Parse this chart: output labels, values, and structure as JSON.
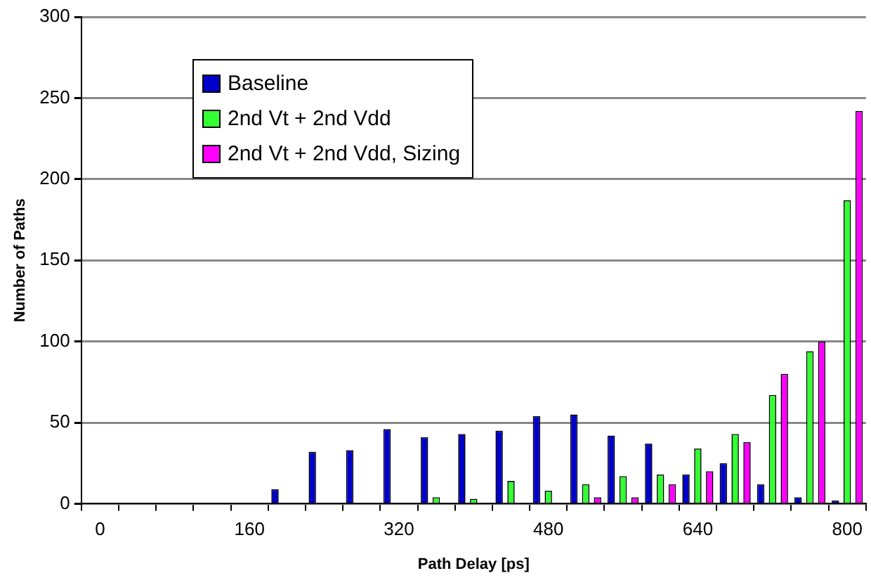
{
  "chart_data": {
    "type": "bar",
    "xlabel": "Path Delay [ps]",
    "ylabel": "Number of Paths",
    "categories": [
      "0",
      null,
      null,
      null,
      "160",
      null,
      null,
      null,
      "320",
      null,
      null,
      null,
      "480",
      null,
      null,
      null,
      "640",
      null,
      null,
      null,
      "800"
    ],
    "series": [
      {
        "name": "Baseline",
        "color": "#0000cc",
        "values": [
          0,
          0,
          0,
          0,
          0,
          9,
          32,
          33,
          46,
          41,
          43,
          45,
          54,
          55,
          42,
          37,
          18,
          25,
          12,
          4,
          2
        ]
      },
      {
        "name": "2nd Vt + 2nd Vdd",
        "color": "#33ff33",
        "values": [
          0,
          0,
          0,
          0,
          0,
          0,
          0,
          0,
          0,
          4,
          3,
          14,
          8,
          12,
          17,
          18,
          34,
          43,
          67,
          94,
          187
        ]
      },
      {
        "name": "2nd Vt + 2nd Vdd, Sizing",
        "color": "#ff00ff",
        "values": [
          0,
          0,
          0,
          0,
          0,
          0,
          0,
          0,
          0,
          0,
          0,
          0,
          0,
          4,
          4,
          12,
          20,
          38,
          80,
          100,
          242
        ]
      }
    ],
    "ylim": [
      0,
      300
    ],
    "yticks": [
      0,
      50,
      100,
      150,
      200,
      250,
      300
    ],
    "grid": "y",
    "legend": "top left"
  }
}
